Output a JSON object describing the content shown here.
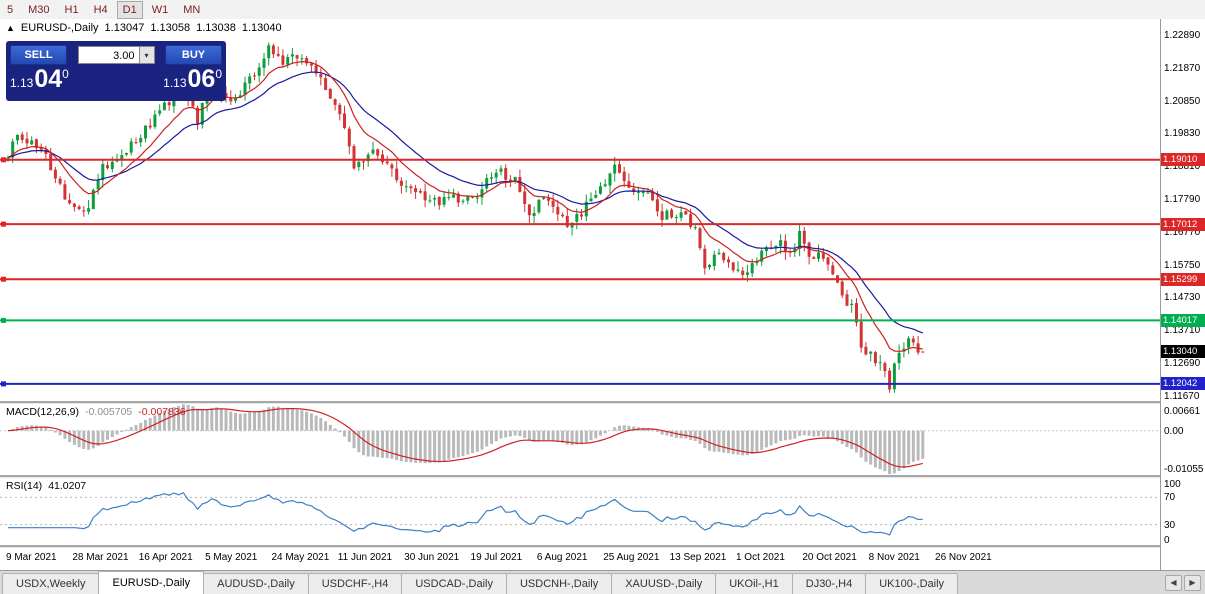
{
  "toolbar": {
    "periods": [
      "5",
      "M30",
      "H1",
      "H4",
      "D1",
      "W1",
      "MN"
    ],
    "active": "D1"
  },
  "header": {
    "collapse_icon": "▲",
    "symbol": "EURUSD-,Daily",
    "open": "1.13047",
    "high": "1.13058",
    "low": "1.13038",
    "close": "1.13040"
  },
  "trade_panel": {
    "sell_label": "SELL",
    "buy_label": "BUY",
    "volume": "3.00",
    "dropdown_icon": "▾",
    "bid": {
      "prefix": "1.13",
      "big": "04",
      "pip": "0"
    },
    "ask": {
      "prefix": "1.13",
      "big": "06",
      "pip": "0"
    }
  },
  "price_axis": {
    "ticks": [
      "1.22890",
      "1.21870",
      "1.20850",
      "1.19830",
      "1.18810",
      "1.17790",
      "1.16770",
      "1.15750",
      "1.14730",
      "1.13710",
      "1.12690",
      "1.11670"
    ]
  },
  "hlines": [
    {
      "value": 1.1901,
      "label": "1.19010",
      "color": "#dd2626"
    },
    {
      "value": 1.17012,
      "label": "1.17012",
      "color": "#dd2626"
    },
    {
      "value": 1.15299,
      "label": "1.15299",
      "color": "#dd2626"
    },
    {
      "value": 1.14017,
      "label": "1.14017",
      "color": "#00b050"
    },
    {
      "value": 1.12042,
      "label": "1.12042",
      "color": "#2222cc"
    }
  ],
  "current_price": {
    "value": 1.1304,
    "label": "1.13040",
    "badge_color": "#000000"
  },
  "macd_panel": {
    "name": "MACD(12,26,9)",
    "main_value": "-0.005705",
    "signal_value": "-0.007836",
    "axis_labels": [
      "0.00661",
      "0.00",
      "-0.01055"
    ],
    "range": [
      0.00661,
      -0.01055
    ],
    "hist_color": "#b9b9b9",
    "signal_color": "#cf2222"
  },
  "rsi_panel": {
    "name": "RSI(14)",
    "value": "41.0207",
    "axis_labels": [
      "100",
      "70",
      "30",
      "0"
    ],
    "levels": [
      70,
      30
    ],
    "line_color": "#3f7fc4"
  },
  "date_axis": {
    "labels": [
      "9 Mar 2021",
      "28 Mar 2021",
      "16 Apr 2021",
      "5 May 2021",
      "24 May 2021",
      "11 Jun 2021",
      "30 Jun 2021",
      "19 Jul 2021",
      "6 Aug 2021",
      "25 Aug 2021",
      "13 Sep 2021",
      "1 Oct 2021",
      "20 Oct 2021",
      "8 Nov 2021",
      "26 Nov 2021"
    ]
  },
  "tabs": {
    "items": [
      "USDX,Weekly",
      "EURUSD-,Daily",
      "AUDUSD-,Daily",
      "USDCHF-,H4",
      "USDCAD-,Daily",
      "USDCNH-,Daily",
      "XAUUSD-,Daily",
      "UKOil-,H1",
      "DJ30-,H4",
      "UK100-,Daily"
    ],
    "active_index": 1,
    "scroll_left_icon": "◀",
    "scroll_right_icon": "▶"
  },
  "chart_data": {
    "type": "candlestick",
    "symbol": "EURUSD",
    "timeframe": "Daily",
    "bar_count": 194,
    "y_min": 1.1151,
    "y_max": 1.2339,
    "last_ohlc": [
      1.13047,
      1.13058,
      1.13038,
      1.1304
    ],
    "close_anchors": [
      [
        0,
        1.19
      ],
      [
        2,
        1.1985
      ],
      [
        8,
        1.1915
      ],
      [
        12,
        1.179
      ],
      [
        16,
        1.1725
      ],
      [
        20,
        1.1875
      ],
      [
        27,
        1.1965
      ],
      [
        31,
        1.2035
      ],
      [
        37,
        1.212
      ],
      [
        40,
        1.2015
      ],
      [
        43,
        1.2165
      ],
      [
        47,
        1.2075
      ],
      [
        51,
        1.215
      ],
      [
        55,
        1.225
      ],
      [
        58,
        1.2195
      ],
      [
        60,
        1.222
      ],
      [
        65,
        1.2175
      ],
      [
        68,
        1.2105
      ],
      [
        71,
        1.1995
      ],
      [
        73,
        1.1865
      ],
      [
        77,
        1.193
      ],
      [
        82,
        1.185
      ],
      [
        86,
        1.179
      ],
      [
        90,
        1.1775
      ],
      [
        95,
        1.178
      ],
      [
        99,
        1.18
      ],
      [
        103,
        1.187
      ],
      [
        107,
        1.1835
      ],
      [
        110,
        1.172
      ],
      [
        113,
        1.1795
      ],
      [
        118,
        1.17
      ],
      [
        121,
        1.174
      ],
      [
        125,
        1.181
      ],
      [
        128,
        1.188
      ],
      [
        131,
        1.1815
      ],
      [
        135,
        1.1805
      ],
      [
        138,
        1.1725
      ],
      [
        142,
        1.174
      ],
      [
        145,
        1.168
      ],
      [
        147,
        1.158
      ],
      [
        150,
        1.16
      ],
      [
        153,
        1.157
      ],
      [
        155,
        1.153
      ],
      [
        158,
        1.16
      ],
      [
        160,
        1.1635
      ],
      [
        163,
        1.1645
      ],
      [
        165,
        1.16
      ],
      [
        167,
        1.168
      ],
      [
        169,
        1.1605
      ],
      [
        171,
        1.161
      ],
      [
        173,
        1.1565
      ],
      [
        176,
        1.148
      ],
      [
        178,
        1.1445
      ],
      [
        180,
        1.132
      ],
      [
        183,
        1.1285
      ],
      [
        186,
        1.12
      ],
      [
        188,
        1.1315
      ],
      [
        190,
        1.134
      ],
      [
        193,
        1.1304
      ]
    ],
    "up_color": "#0f9d3c",
    "down_color": "#d23434",
    "ma_fast": {
      "period": 10,
      "color": "#cc1f1f"
    },
    "ma_slow": {
      "period": 21,
      "color": "#1a1a9e"
    },
    "macd": {
      "fast": 12,
      "slow": 26,
      "signal": 9
    },
    "rsi": {
      "period": 14
    }
  }
}
